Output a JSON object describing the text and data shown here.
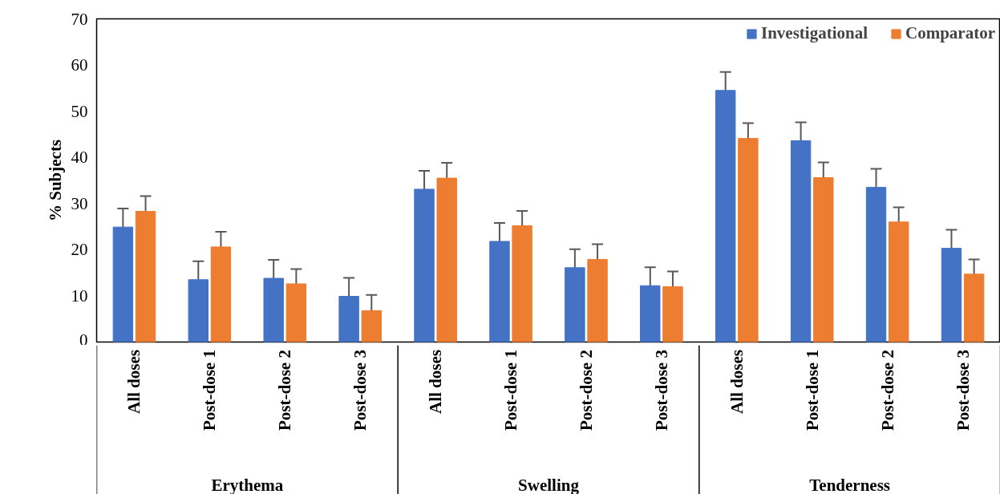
{
  "chart_data": {
    "type": "bar",
    "ylabel": "% Subjects",
    "categories": [
      "All doses",
      "Post-dose 1",
      "Post-dose 2",
      "Post-dose 3",
      "All doses",
      "Post-dose 1",
      "Post-dose 2",
      "Post-dose 3",
      "All doses",
      "Post-dose 1",
      "Post-dose 2",
      "Post-dose 3"
    ],
    "annotations": [
      "Erythema",
      "Swelling",
      "Tenderness"
    ],
    "series": [
      {
        "name": "Investigational",
        "color": "#4472c4",
        "values": [
          24.9,
          13.5,
          13.8,
          9.9,
          33.1,
          21.8,
          16.1,
          12.2,
          54.5,
          43.6,
          33.5,
          20.3
        ],
        "errors": [
          4,
          4,
          4,
          4,
          4,
          4,
          4,
          4,
          4,
          4,
          4,
          4
        ]
      },
      {
        "name": "Comparator",
        "color": "#ed7d31",
        "values": [
          28.3,
          20.6,
          12.6,
          6.8,
          35.5,
          25.2,
          17.9,
          12.0,
          44.1,
          35.6,
          26.0,
          14.7
        ],
        "errors": [
          3.3,
          3.3,
          3.2,
          3.4,
          3.3,
          3.2,
          3.3,
          3.3,
          3.3,
          3.3,
          3.2,
          3.2
        ]
      }
    ],
    "ylim": [
      0,
      70
    ],
    "yticks": [
      0,
      10,
      20,
      30,
      40,
      50,
      60,
      70
    ],
    "legend": "top right"
  }
}
